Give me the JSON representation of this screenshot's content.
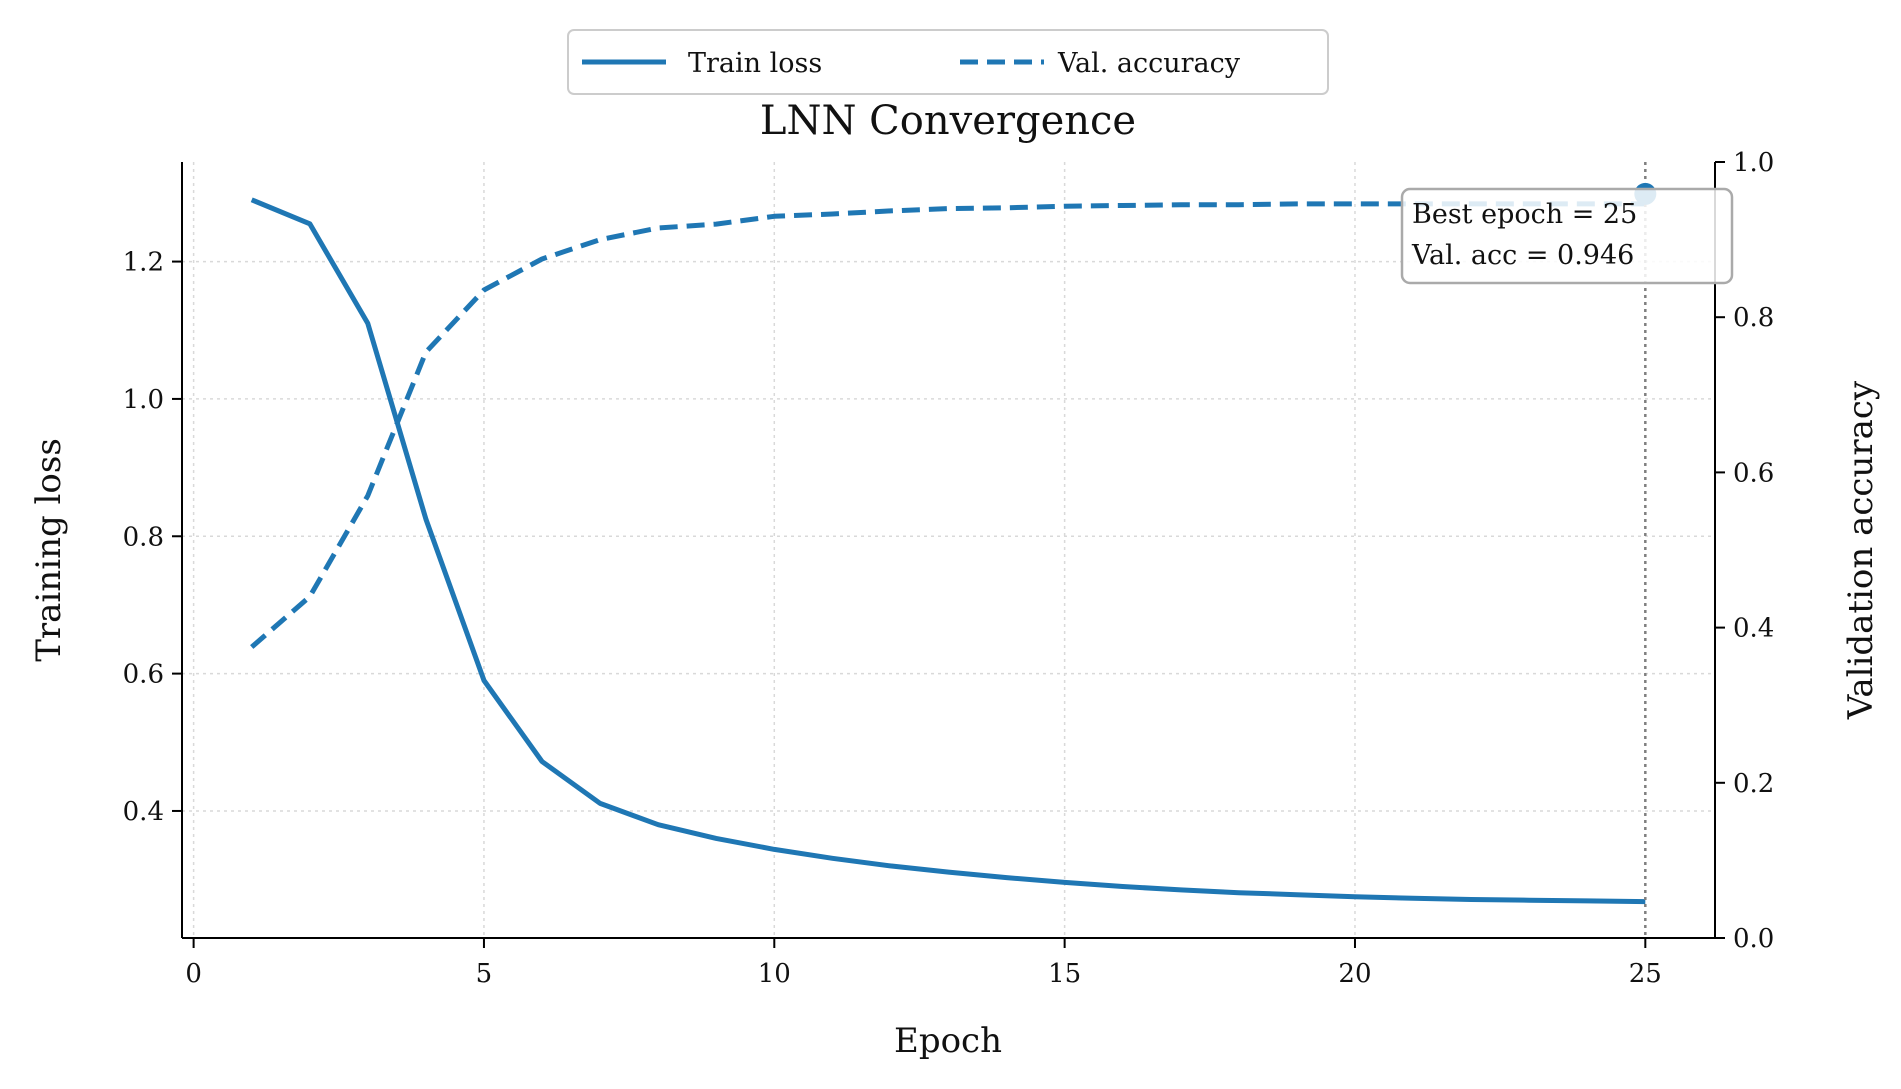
{
  "chart_data": {
    "type": "line",
    "title": "LNN Convergence",
    "xlabel": "Epoch",
    "ylabel": "Training loss",
    "y2label": "Validation accuracy",
    "xlim": [
      -0.2,
      26.2
    ],
    "ylim": [
      0.215,
      1.345
    ],
    "y2lim": [
      0.0,
      1.0
    ],
    "xticks": [
      "0",
      "5",
      "10",
      "15",
      "20",
      "25"
    ],
    "xtick_values": [
      0,
      5,
      10,
      15,
      20,
      25
    ],
    "yticks": [
      "0.4",
      "0.6",
      "0.8",
      "1.0",
      "1.2"
    ],
    "ytick_values": [
      0.4,
      0.6,
      0.8,
      1.0,
      1.2
    ],
    "y2ticks": [
      "0.0",
      "0.2",
      "0.4",
      "0.6",
      "0.8",
      "1.0"
    ],
    "y2tick_values": [
      0.0,
      0.2,
      0.4,
      0.6,
      0.8,
      1.0
    ],
    "grid": true,
    "legend_position": "top-center",
    "x": [
      1,
      2,
      3,
      4,
      5,
      6,
      7,
      8,
      9,
      10,
      11,
      12,
      13,
      14,
      15,
      16,
      17,
      18,
      19,
      20,
      21,
      22,
      23,
      24,
      25
    ],
    "series": [
      {
        "name": "Train loss",
        "axis": "left",
        "style": "solid",
        "color": "#1f77b4",
        "values": [
          1.29,
          1.255,
          1.11,
          0.825,
          0.59,
          0.472,
          0.411,
          0.38,
          0.36,
          0.344,
          0.331,
          0.32,
          0.311,
          0.303,
          0.296,
          0.29,
          0.285,
          0.281,
          0.278,
          0.275,
          0.273,
          0.271,
          0.27,
          0.269,
          0.268
        ]
      },
      {
        "name": "Val. accuracy",
        "axis": "right",
        "style": "dashed",
        "color": "#1f77b4",
        "values": [
          0.375,
          0.44,
          0.57,
          0.755,
          0.835,
          0.875,
          0.9,
          0.915,
          0.92,
          0.93,
          0.933,
          0.937,
          0.94,
          0.941,
          0.943,
          0.944,
          0.945,
          0.945,
          0.946,
          0.946,
          0.946,
          0.946,
          0.946,
          0.946,
          0.946
        ]
      }
    ],
    "best_marker": {
      "x": 25,
      "y": 0.946,
      "axis": "right"
    },
    "annotation": {
      "line1": "Best epoch = 25",
      "line2": "Val. acc = 0.946"
    }
  }
}
